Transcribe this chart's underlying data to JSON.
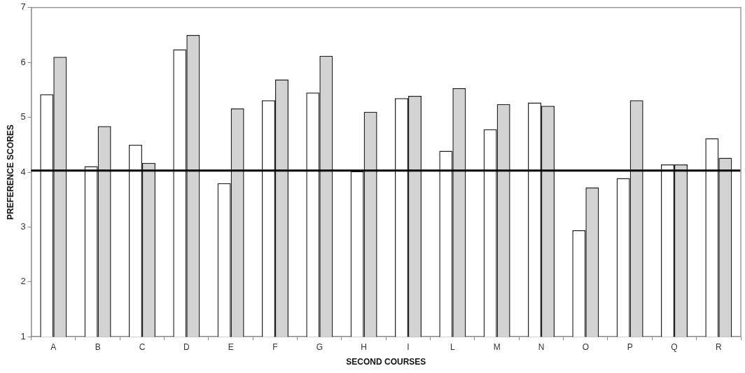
{
  "chart_data": {
    "type": "bar",
    "xlabel": "SECOND COURSES",
    "ylabel": "PREFERENCE SCORES",
    "categories": [
      "A",
      "B",
      "C",
      "D",
      "E",
      "F",
      "G",
      "H",
      "I",
      "L",
      "M",
      "N",
      "O",
      "P",
      "Q",
      "R"
    ],
    "series": [
      {
        "color": "#ffffff",
        "values": [
          5.42,
          4.11,
          4.5,
          6.24,
          3.8,
          5.31,
          5.45,
          4.02,
          5.35,
          4.39,
          4.78,
          5.27,
          2.94,
          3.89,
          4.14,
          4.62
        ]
      },
      {
        "color": "#d3d3d3",
        "values": [
          6.1,
          4.84,
          4.17,
          6.5,
          5.16,
          5.69,
          6.12,
          5.1,
          5.39,
          5.53,
          5.24,
          5.21,
          3.72,
          5.31,
          4.14,
          4.26
        ]
      }
    ],
    "ylim": [
      1,
      7
    ],
    "yticks": [
      1,
      2,
      3,
      4,
      5,
      6,
      7
    ],
    "grid": false,
    "legend": false,
    "ref_lines": [
      {
        "axis": "y",
        "value": 4.03,
        "color": "#000000"
      }
    ]
  }
}
